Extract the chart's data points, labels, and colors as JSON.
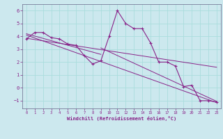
{
  "xlabel": "Windchill (Refroidissement éolien,°C)",
  "bg_color": "#cce8ee",
  "line_color": "#882288",
  "grid_color": "#aadddd",
  "plot_bg": "#cce8ee",
  "xlim": [
    -0.5,
    23.5
  ],
  "ylim": [
    -1.6,
    6.5
  ],
  "yticks": [
    -1,
    0,
    1,
    2,
    3,
    4,
    5,
    6
  ],
  "xticks": [
    0,
    1,
    2,
    3,
    4,
    5,
    6,
    7,
    8,
    9,
    10,
    11,
    12,
    13,
    14,
    15,
    16,
    17,
    18,
    19,
    20,
    21,
    22,
    23
  ],
  "main_x": [
    0,
    1,
    2,
    3,
    4,
    5,
    6,
    7,
    8,
    9,
    10,
    11,
    12,
    13,
    14,
    15,
    16,
    17,
    18,
    19,
    20,
    21,
    22,
    23
  ],
  "main_y": [
    3.8,
    4.3,
    4.3,
    3.9,
    3.8,
    3.4,
    3.3,
    2.5,
    1.85,
    2.1,
    4.0,
    6.0,
    5.0,
    4.6,
    4.6,
    3.5,
    2.0,
    2.0,
    1.7,
    0.1,
    0.2,
    -1.0,
    -1.0,
    -1.1
  ],
  "trend1_x": [
    0,
    23
  ],
  "trend1_y": [
    4.1,
    -1.15
  ],
  "trend2_x": [
    0,
    23
  ],
  "trend2_y": [
    3.85,
    1.6
  ],
  "trend3_x": [
    0,
    9
  ],
  "trend3_y": [
    4.2,
    2.6
  ],
  "trend4_x": [
    9,
    23
  ],
  "trend4_y": [
    3.1,
    -1.05
  ]
}
